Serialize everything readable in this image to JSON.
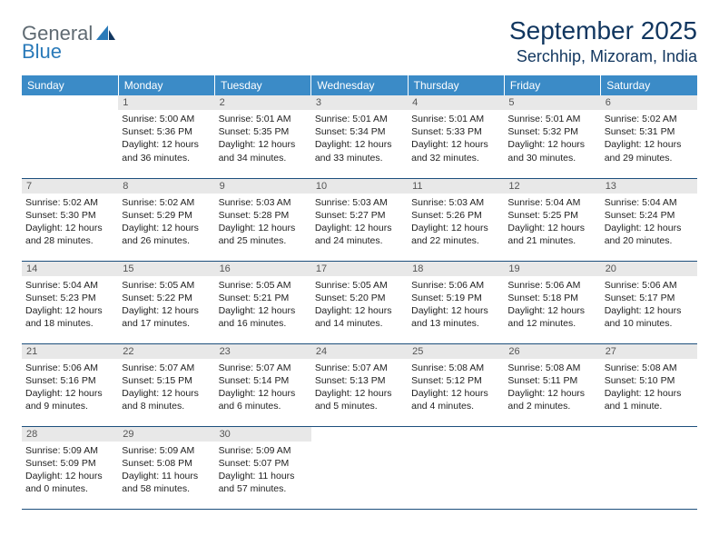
{
  "logo": {
    "part1": "General",
    "part2": "Blue"
  },
  "title": "September 2025",
  "location": "Serchhip, Mizoram, India",
  "colors": {
    "header_bg": "#3b8bc7",
    "row_border": "#1d4f7d",
    "daynum_bg": "#e8e8e8",
    "title_color": "#11365f"
  },
  "weekdays": [
    "Sunday",
    "Monday",
    "Tuesday",
    "Wednesday",
    "Thursday",
    "Friday",
    "Saturday"
  ],
  "weeks": [
    [
      null,
      {
        "n": "1",
        "sr": "5:00 AM",
        "ss": "5:36 PM",
        "dl": "12 hours and 36 minutes."
      },
      {
        "n": "2",
        "sr": "5:01 AM",
        "ss": "5:35 PM",
        "dl": "12 hours and 34 minutes."
      },
      {
        "n": "3",
        "sr": "5:01 AM",
        "ss": "5:34 PM",
        "dl": "12 hours and 33 minutes."
      },
      {
        "n": "4",
        "sr": "5:01 AM",
        "ss": "5:33 PM",
        "dl": "12 hours and 32 minutes."
      },
      {
        "n": "5",
        "sr": "5:01 AM",
        "ss": "5:32 PM",
        "dl": "12 hours and 30 minutes."
      },
      {
        "n": "6",
        "sr": "5:02 AM",
        "ss": "5:31 PM",
        "dl": "12 hours and 29 minutes."
      }
    ],
    [
      {
        "n": "7",
        "sr": "5:02 AM",
        "ss": "5:30 PM",
        "dl": "12 hours and 28 minutes."
      },
      {
        "n": "8",
        "sr": "5:02 AM",
        "ss": "5:29 PM",
        "dl": "12 hours and 26 minutes."
      },
      {
        "n": "9",
        "sr": "5:03 AM",
        "ss": "5:28 PM",
        "dl": "12 hours and 25 minutes."
      },
      {
        "n": "10",
        "sr": "5:03 AM",
        "ss": "5:27 PM",
        "dl": "12 hours and 24 minutes."
      },
      {
        "n": "11",
        "sr": "5:03 AM",
        "ss": "5:26 PM",
        "dl": "12 hours and 22 minutes."
      },
      {
        "n": "12",
        "sr": "5:04 AM",
        "ss": "5:25 PM",
        "dl": "12 hours and 21 minutes."
      },
      {
        "n": "13",
        "sr": "5:04 AM",
        "ss": "5:24 PM",
        "dl": "12 hours and 20 minutes."
      }
    ],
    [
      {
        "n": "14",
        "sr": "5:04 AM",
        "ss": "5:23 PM",
        "dl": "12 hours and 18 minutes."
      },
      {
        "n": "15",
        "sr": "5:05 AM",
        "ss": "5:22 PM",
        "dl": "12 hours and 17 minutes."
      },
      {
        "n": "16",
        "sr": "5:05 AM",
        "ss": "5:21 PM",
        "dl": "12 hours and 16 minutes."
      },
      {
        "n": "17",
        "sr": "5:05 AM",
        "ss": "5:20 PM",
        "dl": "12 hours and 14 minutes."
      },
      {
        "n": "18",
        "sr": "5:06 AM",
        "ss": "5:19 PM",
        "dl": "12 hours and 13 minutes."
      },
      {
        "n": "19",
        "sr": "5:06 AM",
        "ss": "5:18 PM",
        "dl": "12 hours and 12 minutes."
      },
      {
        "n": "20",
        "sr": "5:06 AM",
        "ss": "5:17 PM",
        "dl": "12 hours and 10 minutes."
      }
    ],
    [
      {
        "n": "21",
        "sr": "5:06 AM",
        "ss": "5:16 PM",
        "dl": "12 hours and 9 minutes."
      },
      {
        "n": "22",
        "sr": "5:07 AM",
        "ss": "5:15 PM",
        "dl": "12 hours and 8 minutes."
      },
      {
        "n": "23",
        "sr": "5:07 AM",
        "ss": "5:14 PM",
        "dl": "12 hours and 6 minutes."
      },
      {
        "n": "24",
        "sr": "5:07 AM",
        "ss": "5:13 PM",
        "dl": "12 hours and 5 minutes."
      },
      {
        "n": "25",
        "sr": "5:08 AM",
        "ss": "5:12 PM",
        "dl": "12 hours and 4 minutes."
      },
      {
        "n": "26",
        "sr": "5:08 AM",
        "ss": "5:11 PM",
        "dl": "12 hours and 2 minutes."
      },
      {
        "n": "27",
        "sr": "5:08 AM",
        "ss": "5:10 PM",
        "dl": "12 hours and 1 minute."
      }
    ],
    [
      {
        "n": "28",
        "sr": "5:09 AM",
        "ss": "5:09 PM",
        "dl": "12 hours and 0 minutes."
      },
      {
        "n": "29",
        "sr": "5:09 AM",
        "ss": "5:08 PM",
        "dl": "11 hours and 58 minutes."
      },
      {
        "n": "30",
        "sr": "5:09 AM",
        "ss": "5:07 PM",
        "dl": "11 hours and 57 minutes."
      },
      null,
      null,
      null,
      null
    ]
  ],
  "labels": {
    "sunrise": "Sunrise:",
    "sunset": "Sunset:",
    "daylight": "Daylight:"
  }
}
